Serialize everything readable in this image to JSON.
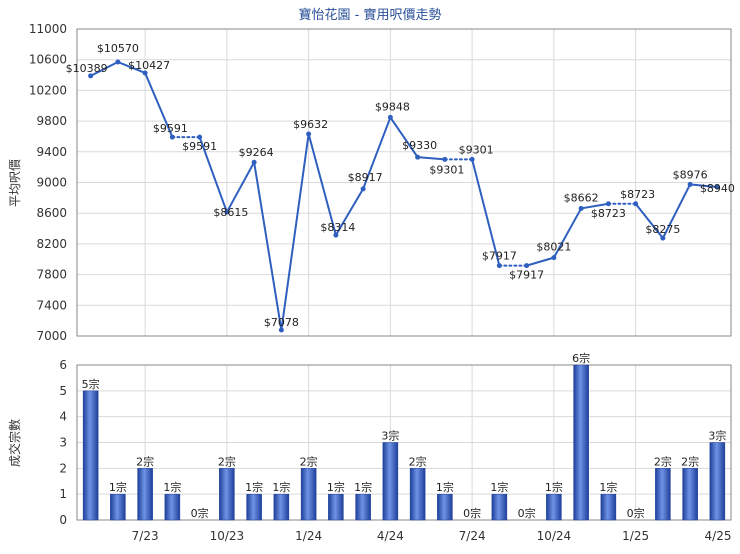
{
  "chart_data": [
    {
      "type": "line",
      "title": "寶怡花園 - 實用呎價走勢",
      "ylabel": "平均呎價",
      "ylim": [
        7000,
        11000
      ],
      "yticks": [
        7000,
        7400,
        7800,
        8200,
        8600,
        9000,
        9400,
        9800,
        10200,
        10600,
        11000
      ],
      "grid": true,
      "points": [
        {
          "label": "$10389",
          "value": 10389
        },
        {
          "label": "$10570",
          "value": 10570
        },
        {
          "label": "$10427",
          "value": 10427
        },
        {
          "label": "$9591",
          "value": 9591
        },
        {
          "label": "$9591",
          "value": 9591
        },
        {
          "label": "$8615",
          "value": 8615
        },
        {
          "label": "$9264",
          "value": 9264
        },
        {
          "label": "$7078",
          "value": 7078
        },
        {
          "label": "$9632",
          "value": 9632
        },
        {
          "label": "$8314",
          "value": 8314
        },
        {
          "label": "$8917",
          "value": 8917
        },
        {
          "label": "$9848",
          "value": 9848
        },
        {
          "label": "$9330",
          "value": 9330
        },
        {
          "label": "$9301",
          "value": 9301
        },
        {
          "label": "$9301",
          "value": 9301
        },
        {
          "label": "$7917",
          "value": 7917
        },
        {
          "label": "$7917",
          "value": 7917
        },
        {
          "label": "$8021",
          "value": 8021
        },
        {
          "label": "$8662",
          "value": 8662
        },
        {
          "label": "$8723",
          "value": 8723
        },
        {
          "label": "$8723",
          "value": 8723
        },
        {
          "label": "$8275",
          "value": 8275
        },
        {
          "label": "$8976",
          "value": 8976
        },
        {
          "label": "$8940",
          "value": 8940
        }
      ],
      "dotted_segments": [
        [
          3,
          4
        ],
        [
          13,
          14
        ],
        [
          15,
          16
        ],
        [
          19,
          20
        ]
      ],
      "series_color": "#2f5fbf"
    },
    {
      "type": "bar",
      "ylabel": "成交宗數",
      "ylim": [
        0,
        6
      ],
      "yticks": [
        0,
        1,
        2,
        3,
        4,
        5,
        6
      ],
      "grid": true,
      "x_tick_labels": [
        "7/23",
        "10/23",
        "1/24",
        "4/24",
        "7/24",
        "10/24",
        "1/25",
        "4/25"
      ],
      "values": [
        5,
        1,
        2,
        1,
        0,
        2,
        1,
        1,
        2,
        1,
        1,
        3,
        2,
        1,
        0,
        1,
        0,
        1,
        6,
        1,
        0,
        2,
        2,
        3
      ],
      "data_labels": [
        "5宗",
        "1宗",
        "2宗",
        "1宗",
        "0宗",
        "2宗",
        "1宗",
        "1宗",
        "2宗",
        "1宗",
        "1宗",
        "3宗",
        "2宗",
        "1宗",
        "0宗",
        "1宗",
        "0宗",
        "1宗",
        "6宗",
        "1宗",
        "0宗",
        "2宗",
        "2宗",
        "3宗"
      ],
      "bar_color": "#3b64c8"
    }
  ]
}
